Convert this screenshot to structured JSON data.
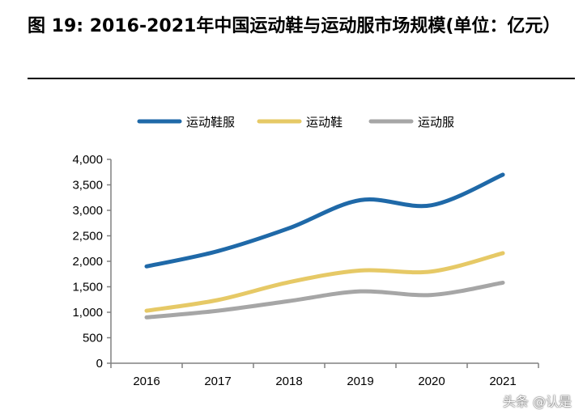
{
  "title": "图 19: 2016-2021年中国运动鞋与运动服市场规模(单位：亿元）",
  "watermark": "头条 @认是",
  "chart_data": {
    "type": "line",
    "title": "",
    "xlabel": "",
    "ylabel": "",
    "categories": [
      "2016",
      "2017",
      "2018",
      "2019",
      "2020",
      "2021"
    ],
    "ylim": [
      0,
      4000
    ],
    "yticks": [
      "0",
      "500",
      "1,000",
      "1,500",
      "2,000",
      "2,500",
      "3,000",
      "3,500",
      "4,000"
    ],
    "grid": false,
    "legend_position": "top",
    "smooth": true,
    "series": [
      {
        "name": "运动鞋服",
        "color": "#1f69a8",
        "values": [
          1900,
          2200,
          2650,
          3200,
          3100,
          3700
        ]
      },
      {
        "name": "运动鞋",
        "color": "#e6c966",
        "values": [
          1030,
          1240,
          1590,
          1820,
          1800,
          2160
        ]
      },
      {
        "name": "运动服",
        "color": "#a6a6a6",
        "values": [
          900,
          1030,
          1220,
          1410,
          1340,
          1580
        ]
      }
    ]
  }
}
